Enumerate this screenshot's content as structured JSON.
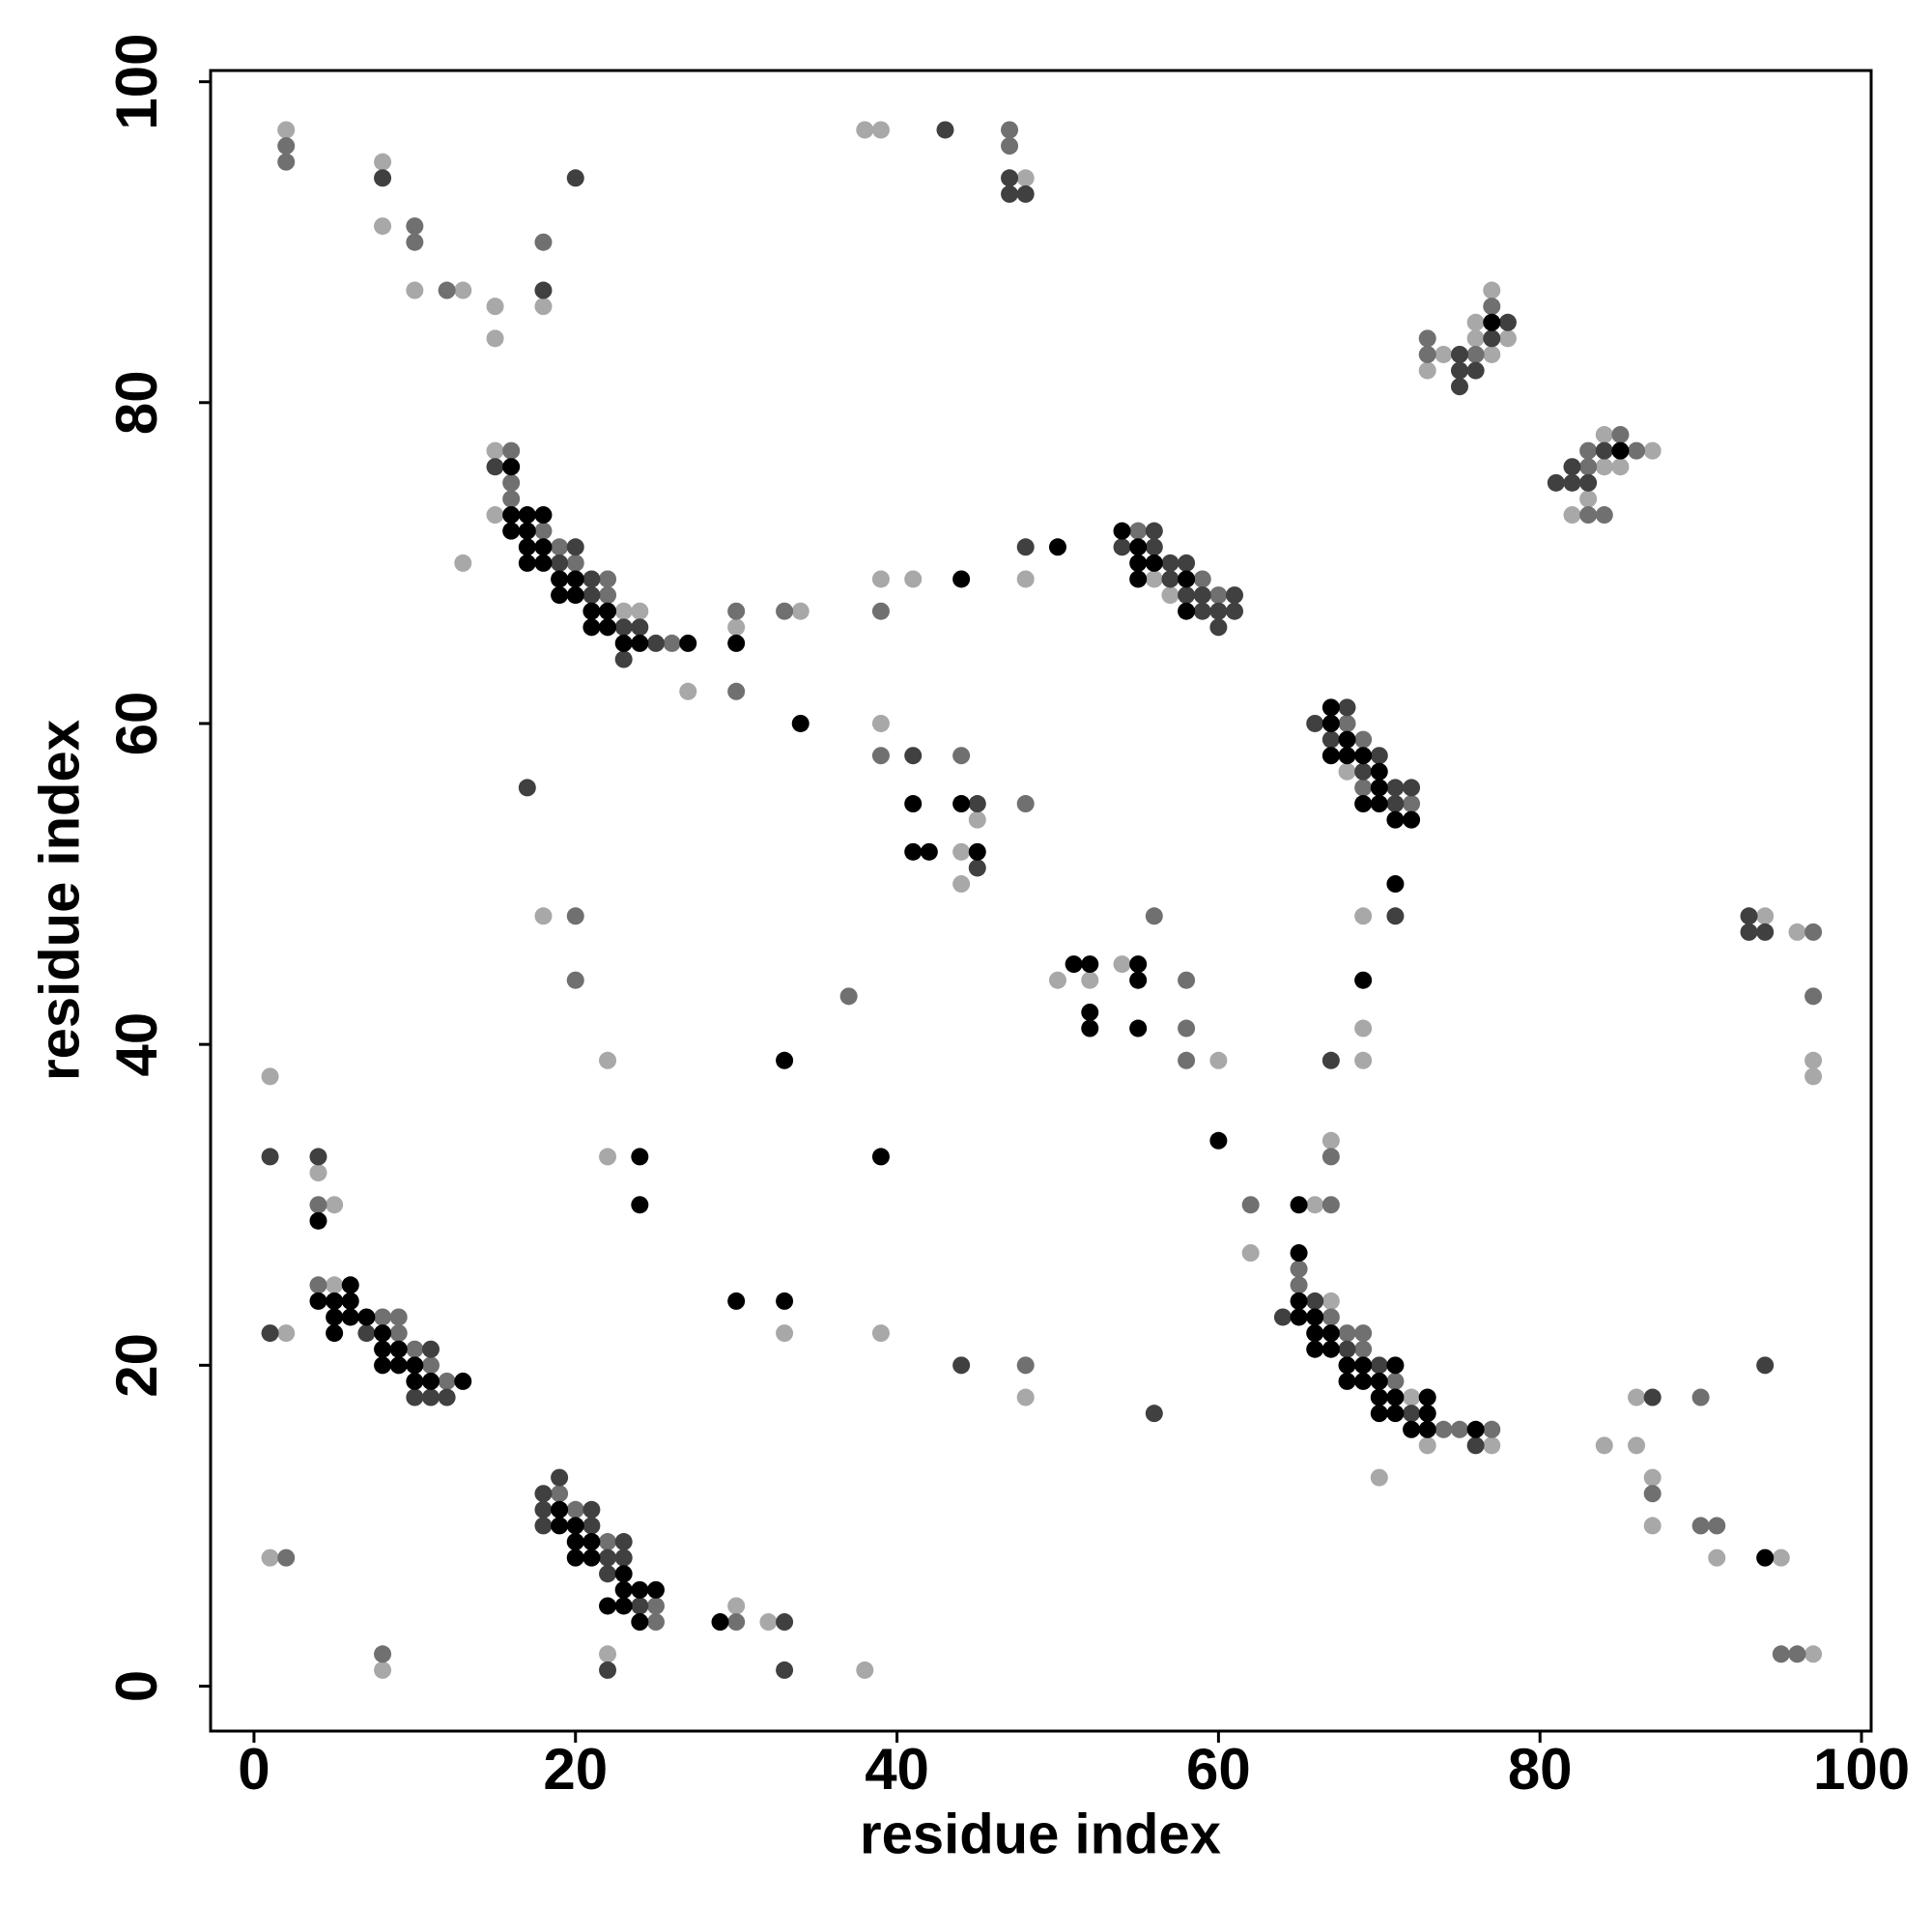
{
  "chart_data": {
    "type": "scatter",
    "xlabel": "residue index",
    "ylabel": "residue index",
    "xlim": [
      -2.7,
      100.6
    ],
    "ylim": [
      -2.8,
      100.7
    ],
    "xticks": [
      0,
      20,
      40,
      60,
      80,
      100
    ],
    "yticks": [
      0,
      20,
      40,
      60,
      80,
      100
    ],
    "grid": false,
    "series": [
      {
        "color": "#a8a8a8",
        "x": [
          2,
          8,
          8,
          10,
          13,
          18,
          15,
          15,
          38,
          39,
          48,
          74,
          73,
          76,
          76,
          77,
          77,
          78,
          82,
          83,
          84,
          84,
          85,
          87,
          15,
          15,
          23,
          24,
          13,
          27,
          30,
          34,
          39,
          41,
          48,
          39,
          45,
          44,
          44,
          56,
          57,
          68,
          69,
          94,
          96,
          97,
          97,
          54,
          50,
          52,
          60,
          18,
          69,
          69,
          22,
          67,
          1,
          4,
          5,
          22,
          66,
          62,
          5,
          2,
          33,
          39,
          48,
          67,
          72,
          73,
          77,
          70,
          86,
          84,
          86,
          87,
          87,
          91,
          95,
          97,
          1,
          30,
          32,
          8,
          22,
          38
        ],
        "values": [
          97,
          95,
          91,
          87,
          87,
          86,
          86,
          84,
          97,
          97,
          94,
          83,
          82,
          84,
          85,
          87,
          83,
          84,
          73,
          74,
          78,
          76,
          76,
          77,
          77,
          73,
          67,
          67,
          70,
          62,
          66,
          67,
          69,
          69,
          69,
          60,
          54,
          52,
          50,
          69,
          68,
          57,
          48,
          48,
          47,
          39,
          38,
          45,
          44,
          44,
          39,
          48,
          41,
          39,
          39,
          34,
          38,
          32,
          30,
          33,
          30,
          27,
          25,
          22,
          22,
          22,
          18,
          24,
          18,
          15,
          15,
          13,
          18,
          15,
          15,
          13,
          10,
          8,
          8,
          2,
          8,
          5,
          4,
          1,
          2,
          1
        ]
      },
      {
        "color": "#707070",
        "x": [
          2,
          2,
          10,
          10,
          18,
          12,
          47,
          47,
          73,
          73,
          76,
          77,
          83,
          83,
          83,
          84,
          85,
          86,
          16,
          16,
          16,
          18,
          19,
          20,
          22,
          22,
          26,
          30,
          30,
          33,
          39,
          39,
          44,
          48,
          55,
          59,
          60,
          68,
          69,
          69,
          72,
          97,
          97,
          56,
          58,
          58,
          58,
          37,
          20,
          20,
          67,
          4,
          62,
          67,
          65,
          65,
          4,
          8,
          9,
          9,
          10,
          11,
          12,
          48,
          67,
          68,
          69,
          69,
          71,
          74,
          75,
          77,
          90,
          87,
          90,
          91,
          95,
          96,
          19,
          20,
          22,
          25,
          25,
          2,
          30,
          8
        ],
        "values": [
          96,
          95,
          91,
          90,
          90,
          87,
          97,
          96,
          84,
          83,
          83,
          86,
          77,
          76,
          73,
          73,
          78,
          77,
          77,
          75,
          74,
          72,
          71,
          70,
          69,
          68,
          65,
          62,
          67,
          67,
          67,
          58,
          58,
          55,
          72,
          69,
          68,
          60,
          59,
          56,
          55,
          47,
          43,
          48,
          44,
          41,
          39,
          43,
          48,
          44,
          33,
          30,
          30,
          30,
          26,
          25,
          25,
          23,
          23,
          22,
          21,
          20,
          19,
          20,
          23,
          22,
          22,
          21,
          19,
          16,
          16,
          16,
          18,
          12,
          10,
          10,
          2,
          2,
          12,
          11,
          9,
          5,
          4,
          8,
          4,
          2
        ]
      },
      {
        "color": "#404040",
        "x": [
          8,
          20,
          18,
          43,
          47,
          47,
          48,
          75,
          75,
          75,
          76,
          77,
          78,
          81,
          82,
          82,
          83,
          84,
          15,
          20,
          19,
          21,
          21,
          23,
          24,
          25,
          23,
          17,
          48,
          41,
          45,
          45,
          56,
          54,
          56,
          57,
          58,
          57,
          58,
          59,
          61,
          59,
          60,
          61,
          60,
          68,
          66,
          67,
          70,
          69,
          71,
          72,
          71,
          71,
          93,
          93,
          94,
          67,
          1,
          4,
          1,
          7,
          11,
          10,
          11,
          12,
          44,
          56,
          64,
          66,
          68,
          70,
          72,
          76,
          87,
          94,
          19,
          18,
          18,
          21,
          18,
          21,
          23,
          22,
          23,
          22,
          24,
          33,
          22,
          33
        ],
        "values": [
          94,
          94,
          87,
          97,
          94,
          93,
          93,
          83,
          82,
          81,
          82,
          84,
          85,
          75,
          76,
          75,
          75,
          77,
          76,
          71,
          70,
          69,
          68,
          66,
          66,
          65,
          64,
          56,
          71,
          58,
          55,
          51,
          72,
          71,
          71,
          70,
          70,
          69,
          68,
          68,
          68,
          67,
          67,
          67,
          66,
          61,
          60,
          59,
          58,
          57,
          56,
          56,
          55,
          48,
          48,
          47,
          47,
          39,
          33,
          33,
          22,
          22,
          21,
          18,
          18,
          18,
          20,
          17,
          23,
          24,
          21,
          20,
          17,
          15,
          18,
          20,
          13,
          12,
          11,
          11,
          10,
          10,
          9,
          8,
          8,
          7,
          5,
          4,
          1,
          1
        ]
      },
      {
        "color": "#000000",
        "x": [
          77,
          85,
          16,
          16,
          17,
          18,
          16,
          17,
          17,
          18,
          17,
          18,
          19,
          20,
          19,
          20,
          21,
          22,
          21,
          22,
          23,
          24,
          27,
          30,
          34,
          44,
          50,
          41,
          44,
          41,
          42,
          45,
          54,
          55,
          55,
          56,
          55,
          58,
          58,
          67,
          67,
          68,
          67,
          68,
          69,
          70,
          70,
          69,
          70,
          71,
          72,
          71,
          51,
          52,
          55,
          55,
          52,
          52,
          55,
          69,
          33,
          60,
          4,
          24,
          24,
          39,
          65,
          65,
          6,
          4,
          5,
          6,
          5,
          6,
          7,
          5,
          8,
          8,
          9,
          8,
          9,
          10,
          10,
          11,
          13,
          30,
          33,
          65,
          65,
          66,
          66,
          67,
          66,
          67,
          68,
          69,
          71,
          68,
          69,
          70,
          70,
          71,
          73,
          70,
          71,
          73,
          72,
          73,
          76,
          94,
          19,
          19,
          20,
          20,
          21,
          20,
          21,
          23,
          23,
          24,
          25,
          22,
          23,
          24,
          29
        ],
        "values": [
          85,
          77,
          76,
          73,
          73,
          73,
          72,
          72,
          71,
          71,
          70,
          70,
          69,
          69,
          68,
          68,
          67,
          67,
          66,
          66,
          65,
          65,
          65,
          65,
          60,
          69,
          71,
          55,
          55,
          52,
          52,
          52,
          72,
          71,
          70,
          70,
          69,
          69,
          67,
          61,
          60,
          59,
          58,
          58,
          58,
          57,
          56,
          55,
          55,
          54,
          54,
          50,
          45,
          45,
          45,
          44,
          42,
          41,
          41,
          44,
          39,
          34,
          29,
          33,
          30,
          33,
          30,
          27,
          25,
          24,
          24,
          24,
          23,
          23,
          23,
          22,
          22,
          21,
          21,
          20,
          20,
          20,
          19,
          19,
          19,
          24,
          24,
          24,
          23,
          23,
          22,
          22,
          21,
          21,
          20,
          20,
          20,
          19,
          19,
          19,
          18,
          18,
          18,
          17,
          17,
          17,
          16,
          16,
          16,
          8,
          11,
          10,
          10,
          9,
          9,
          8,
          8,
          7,
          6,
          6,
          6,
          5,
          5,
          4,
          4
        ]
      }
    ]
  }
}
